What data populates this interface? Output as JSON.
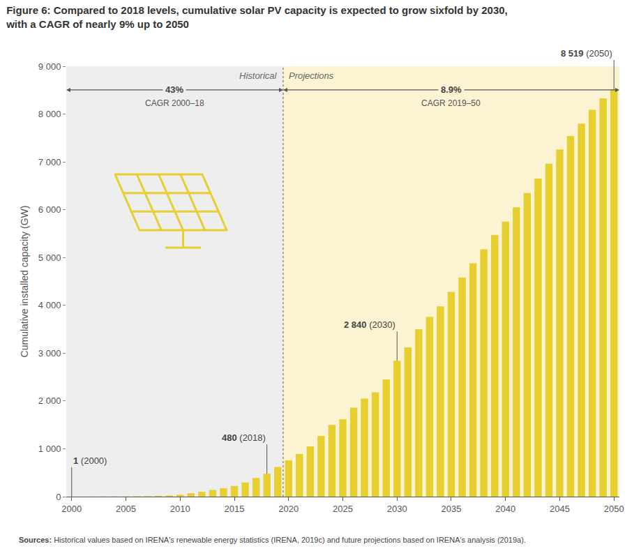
{
  "chart_data": {
    "type": "bar",
    "title": "Figure 6: Compared to 2018 levels, cumulative solar PV capacity is expected to grow sixfold by 2030,\nwith a CAGR of nearly 9% up to 2050",
    "y_label": "Cumulative installed capacity (GW)",
    "x": [
      2000,
      2001,
      2002,
      2003,
      2004,
      2005,
      2006,
      2007,
      2008,
      2009,
      2010,
      2011,
      2012,
      2013,
      2014,
      2015,
      2016,
      2017,
      2018,
      2019,
      2020,
      2021,
      2022,
      2023,
      2024,
      2025,
      2026,
      2027,
      2028,
      2029,
      2030,
      2031,
      2032,
      2033,
      2034,
      2035,
      2036,
      2037,
      2038,
      2039,
      2040,
      2041,
      2042,
      2043,
      2044,
      2045,
      2046,
      2047,
      2048,
      2049,
      2050
    ],
    "series": [
      {
        "name": "Historical",
        "color": "#e6cf2f",
        "cagr": "43%",
        "cagr_label": "CAGR 2000–18",
        "values": [
          1,
          1,
          2,
          3,
          4,
          5,
          7,
          9,
          16,
          23,
          40,
          72,
          101,
          139,
          177,
          223,
          296,
          390,
          480,
          620,
          null,
          null,
          null,
          null,
          null,
          null,
          null,
          null,
          null,
          null,
          null,
          null,
          null,
          null,
          null,
          null,
          null,
          null,
          null,
          null,
          null,
          null,
          null,
          null,
          null,
          null,
          null,
          null,
          null,
          null,
          null
        ]
      },
      {
        "name": "Projections",
        "color": "#e6cf2f",
        "cagr": "8.9%",
        "cagr_label": "CAGR 2019–50",
        "values": [
          null,
          null,
          null,
          null,
          null,
          null,
          null,
          null,
          null,
          null,
          null,
          null,
          null,
          null,
          null,
          null,
          null,
          null,
          null,
          null,
          760,
          890,
          1050,
          1270,
          1500,
          1620,
          1860,
          2050,
          2180,
          2450,
          2840,
          3120,
          3500,
          3760,
          3980,
          4280,
          4580,
          4880,
          5170,
          5470,
          5750,
          6050,
          6350,
          6650,
          6960,
          7260,
          7540,
          7800,
          8090,
          8330,
          8519
        ]
      }
    ],
    "xlim": [
      1999.5,
      2050.5
    ],
    "xticks": [
      2000,
      2005,
      2010,
      2015,
      2020,
      2025,
      2030,
      2035,
      2040,
      2045,
      2050
    ],
    "ylim": [
      0,
      9000
    ],
    "yticks": [
      0,
      {
        "value": 1000,
        "label": "1 000"
      },
      {
        "value": 2000,
        "label": "2 000"
      },
      {
        "value": 3000,
        "label": "3 000"
      },
      {
        "value": 4000,
        "label": "4 000"
      },
      {
        "value": 5000,
        "label": "5 000"
      },
      {
        "value": 6000,
        "label": "6 000"
      },
      {
        "value": 7000,
        "label": "7 000"
      },
      {
        "value": 8000,
        "label": "8 000"
      },
      {
        "value": 9000,
        "label": "9 000"
      }
    ],
    "grid": false,
    "annotations": [
      {
        "text": "1 (2000)",
        "x": 2000,
        "y": 1
      },
      {
        "text": "480 (2018)",
        "x": 2018,
        "y": 480
      },
      {
        "text": "2 840 (2030)",
        "x": 2030,
        "y": 2840
      },
      {
        "text": "8 519 (2050)",
        "x": 2050,
        "y": 8519
      }
    ],
    "source": "Sources: Historical values based on IRENA's renewable energy statistics (IRENA, 2019c) and future projections based on IRENA's analysis (2019a)."
  }
}
